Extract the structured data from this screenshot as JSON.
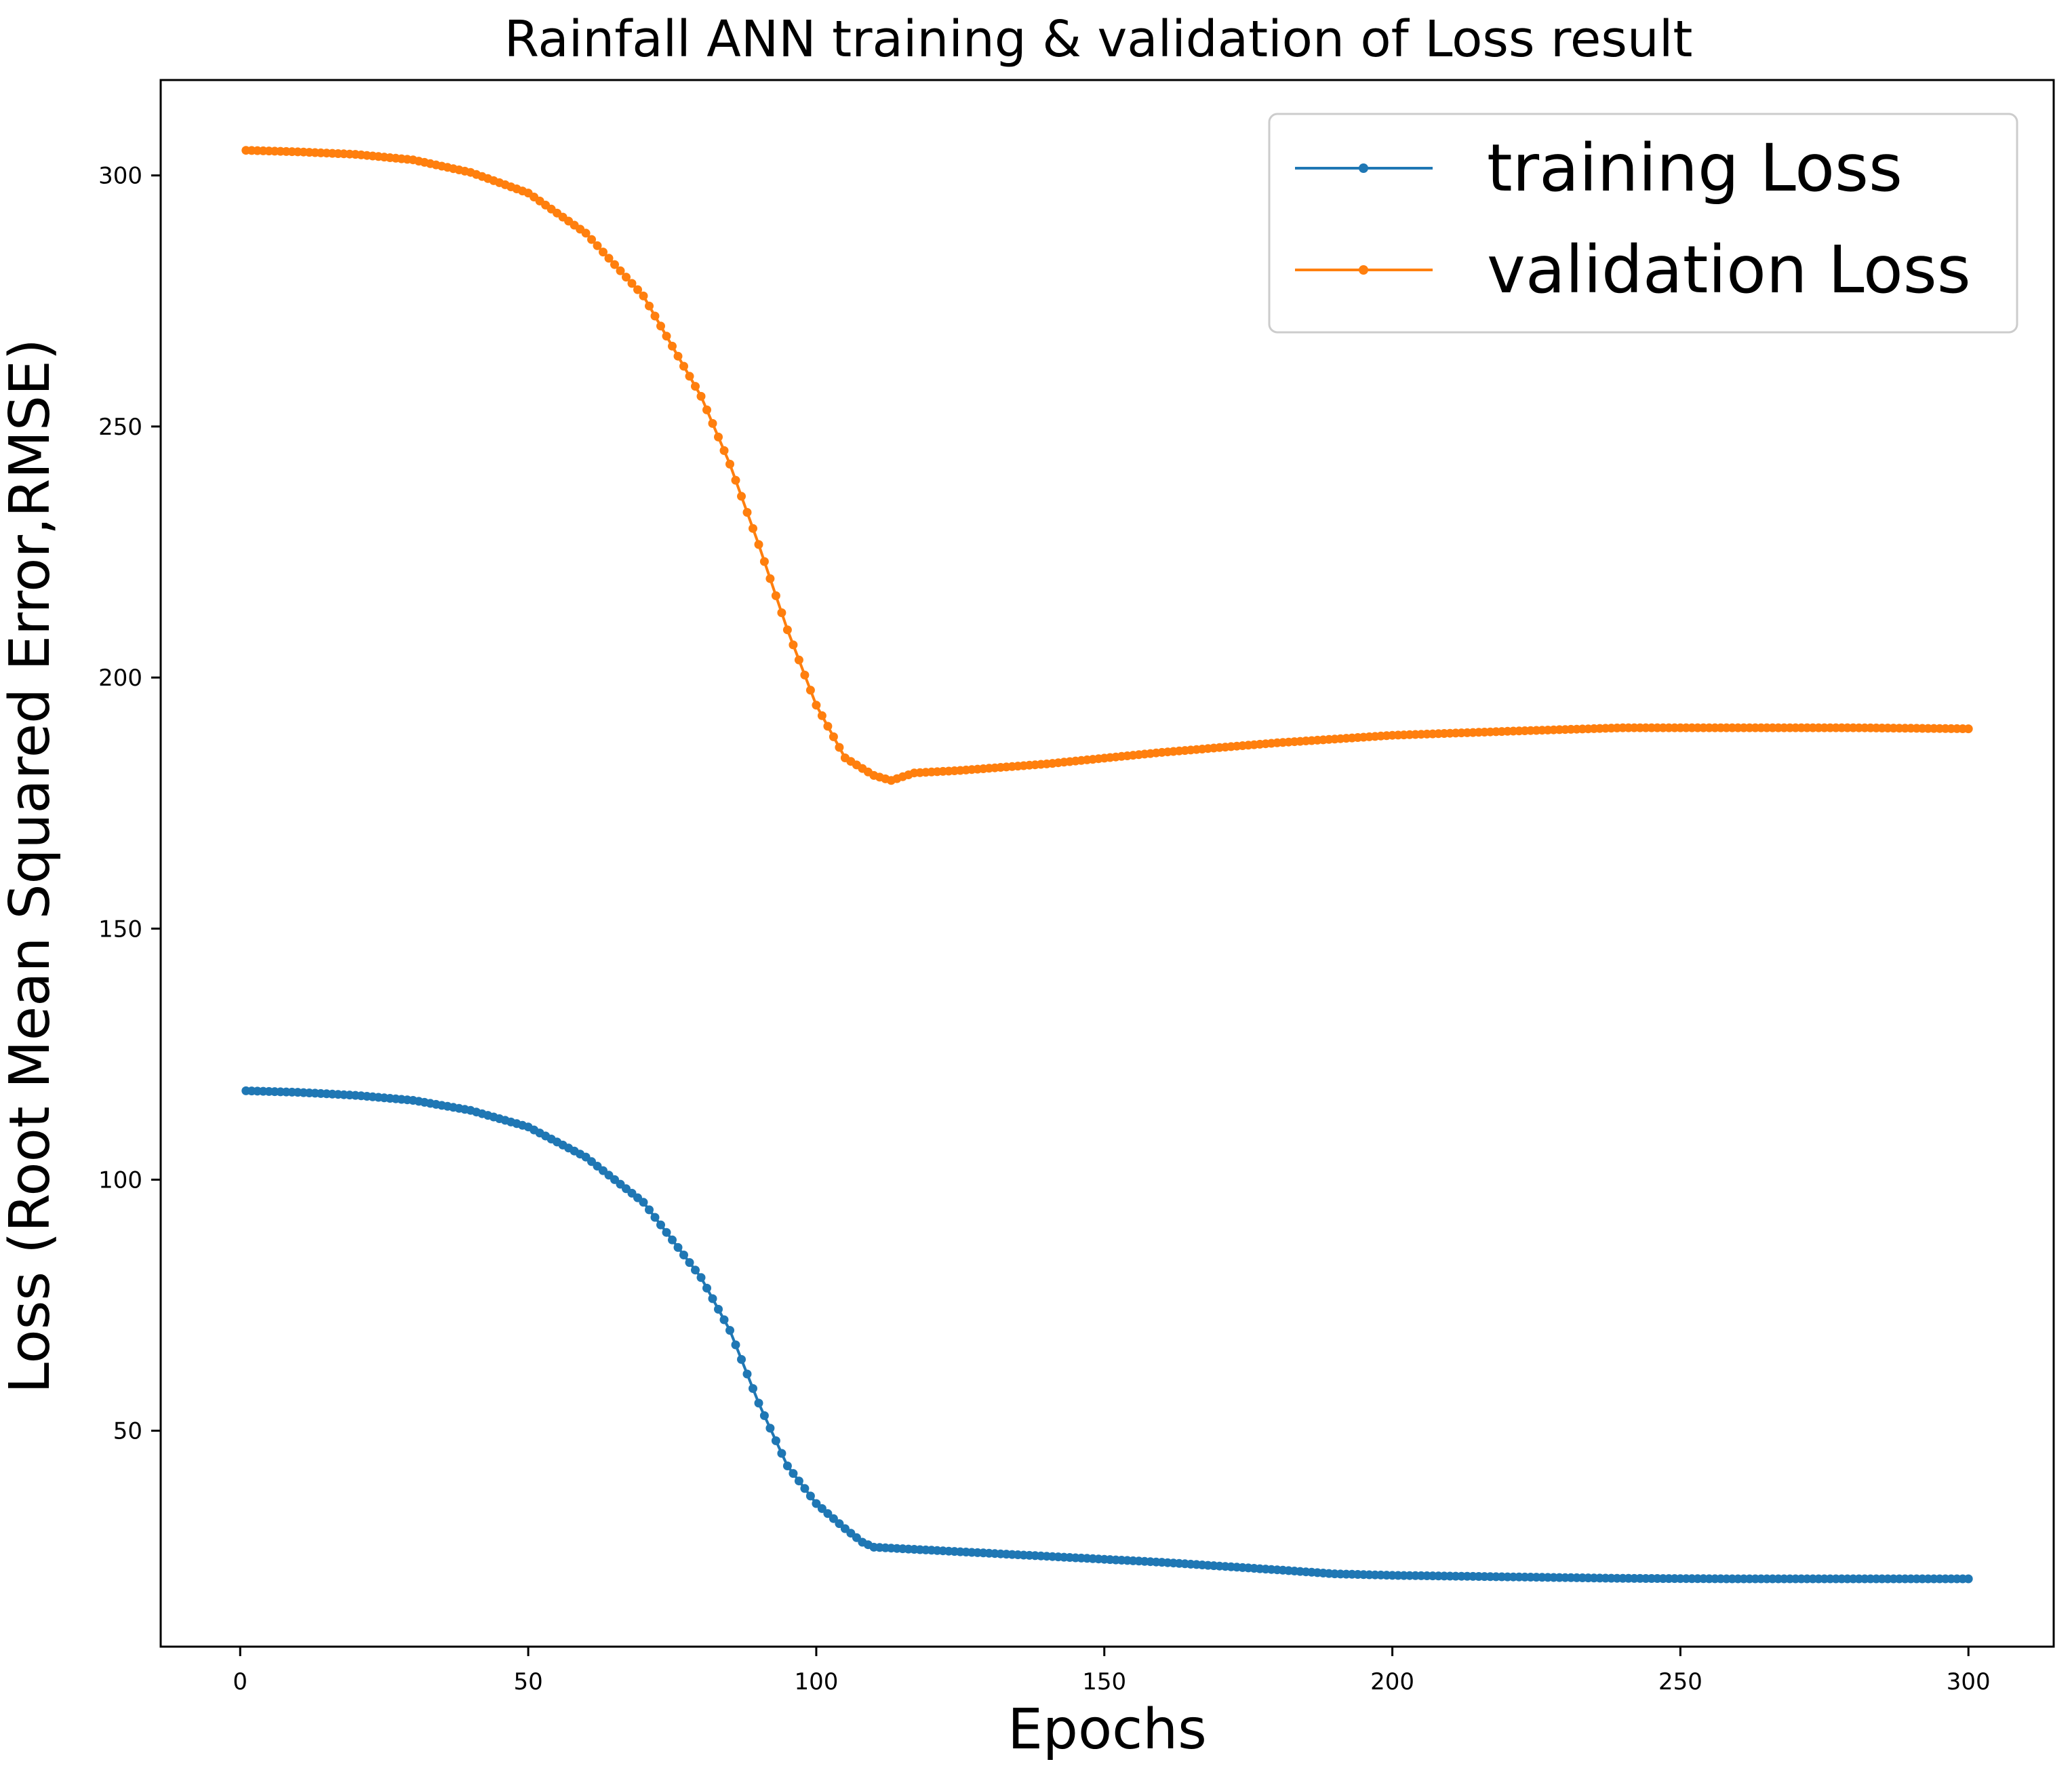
{
  "chart_data": {
    "type": "line",
    "title": "Rainfall ANN training & validation of Loss result",
    "xlabel": "Epochs",
    "ylabel": "Loss (Root Mean Squared Error,RMSE)",
    "xlim": [
      -13.8,
      314.8
    ],
    "ylim": [
      7,
      319
    ],
    "x_ticks": [
      0,
      50,
      100,
      150,
      200,
      250,
      300
    ],
    "y_ticks": [
      50,
      100,
      150,
      200,
      250,
      300
    ],
    "x_start": 1,
    "x_end": 300,
    "x_step": 1,
    "legend_position": "top-right",
    "marker": "dot",
    "series": [
      {
        "name": "training Loss",
        "color": "#1f77b4",
        "anchors": [
          [
            1,
            117.7
          ],
          [
            10,
            117.4
          ],
          [
            20,
            116.8
          ],
          [
            30,
            115.8
          ],
          [
            40,
            113.8
          ],
          [
            50,
            110.5
          ],
          [
            60,
            104.5
          ],
          [
            70,
            95.5
          ],
          [
            80,
            80.5
          ],
          [
            85,
            70
          ],
          [
            90,
            55.5
          ],
          [
            95,
            43
          ],
          [
            100,
            35.5
          ],
          [
            105,
            30.5
          ],
          [
            108,
            27.8
          ],
          [
            110,
            26.8
          ],
          [
            120,
            26.2
          ],
          [
            140,
            25
          ],
          [
            160,
            23.8
          ],
          [
            180,
            22.3
          ],
          [
            190,
            21.5
          ],
          [
            200,
            21.2
          ],
          [
            220,
            20.9
          ],
          [
            240,
            20.6
          ],
          [
            260,
            20.5
          ],
          [
            280,
            20.5
          ],
          [
            300,
            20.5
          ]
        ]
      },
      {
        "name": "validation Loss",
        "color": "#ff7f0e",
        "anchors": [
          [
            1,
            305
          ],
          [
            10,
            304.7
          ],
          [
            20,
            304.2
          ],
          [
            30,
            303.1
          ],
          [
            40,
            300.6
          ],
          [
            50,
            296.5
          ],
          [
            60,
            288.5
          ],
          [
            70,
            276
          ],
          [
            80,
            256
          ],
          [
            85,
            242.5
          ],
          [
            90,
            226.5
          ],
          [
            95,
            209.5
          ],
          [
            100,
            194.5
          ],
          [
            105,
            184
          ],
          [
            110,
            180.5
          ],
          [
            113,
            179.5
          ],
          [
            117,
            181
          ],
          [
            125,
            181.5
          ],
          [
            140,
            182.8
          ],
          [
            160,
            185.1
          ],
          [
            180,
            187
          ],
          [
            200,
            188.5
          ],
          [
            220,
            189.3
          ],
          [
            240,
            190
          ],
          [
            260,
            190
          ],
          [
            280,
            190
          ],
          [
            300,
            189.8
          ]
        ]
      }
    ]
  }
}
